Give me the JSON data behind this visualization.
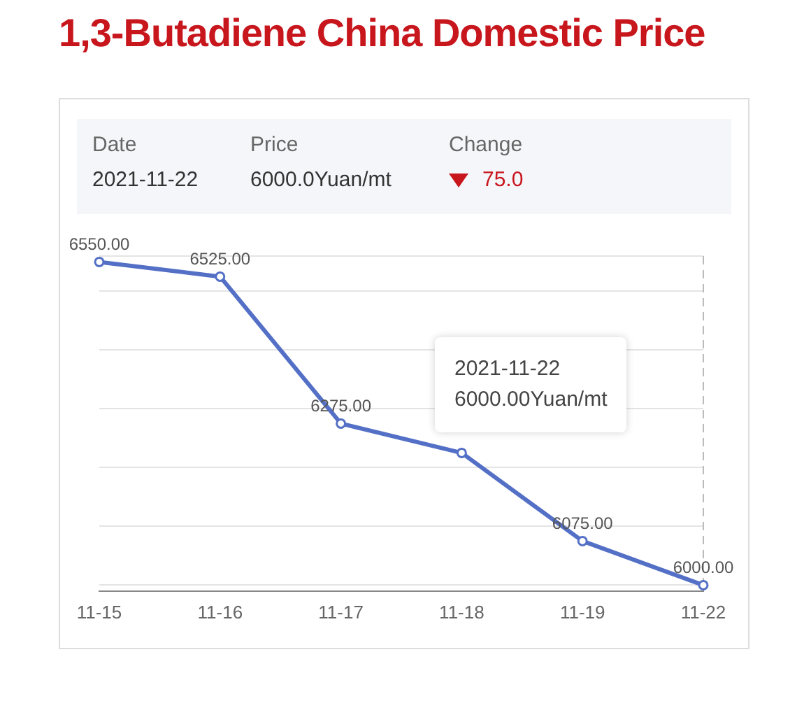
{
  "chart_data": {
    "type": "line",
    "title": "1,3-Butadiene China Domestic Price",
    "annotations": [
      "Date",
      "Price",
      "Change",
      "2021-11-22",
      "6000.0Yuan/mt",
      "75.0",
      "2021-11-22",
      "6000.00Yuan/mt"
    ],
    "categories": [
      "11-15",
      "11-16",
      "11-17",
      "11-18",
      "11-19",
      "11-22"
    ],
    "series": [
      {
        "color": "#5470c6",
        "values": [
          6550,
          6525,
          6275,
          6225,
          6075,
          6000
        ],
        "value_labels": [
          "6550.00",
          "6525.00",
          "6275.00",
          null,
          "6075.00",
          "6000.00"
        ]
      }
    ],
    "ylim": [
      5990,
      6560
    ],
    "yticks": [
      {
        "value": 6000,
        "label": null
      },
      {
        "value": 6100,
        "label": null
      },
      {
        "value": 6200,
        "label": null
      },
      {
        "value": 6300,
        "label": null
      },
      {
        "value": 6400,
        "label": null
      },
      {
        "value": 6500,
        "label": null
      },
      {
        "value": 6560,
        "label": null
      }
    ],
    "tick_labels": "x",
    "grid": "y",
    "legend": false,
    "marker": "circle",
    "line_style": "solid",
    "ref_lines": [
      {
        "axis": "x",
        "value": "11-22",
        "line_style": "dashed",
        "color": "#bbbbbb"
      }
    ]
  }
}
